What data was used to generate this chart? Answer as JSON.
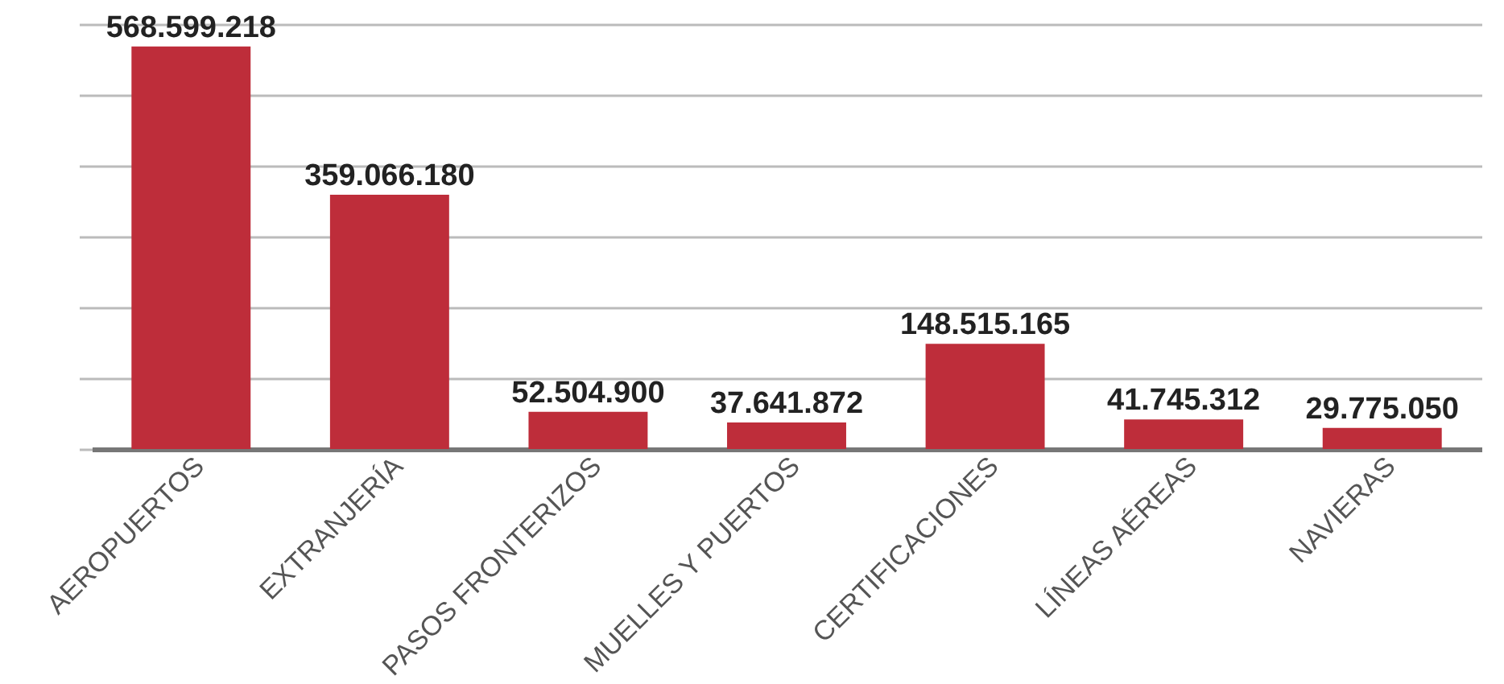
{
  "chart_data": {
    "type": "bar",
    "categories": [
      "AEROPUERTOS",
      "EXTRANJERÍA",
      "PASOS FRONTERIZOS",
      "MUELLES Y PUERTOS",
      "CERTIFICACIONES",
      "LÍNEAS AÉREAS",
      "NAVIERAS"
    ],
    "values": [
      568599218,
      359066180,
      52504900,
      37641872,
      148515165,
      41745312,
      29775050
    ],
    "value_labels": [
      "568.599.218",
      "359.066.180",
      "52.504.900",
      "37.641.872",
      "148.515.165",
      "41.745.312",
      "29.775.050"
    ],
    "color": "#be2d3a",
    "ylim": [
      0,
      600000000
    ],
    "yticks": [
      {
        "value": 0,
        "label": null
      },
      {
        "value": 100000000,
        "label": null
      },
      {
        "value": 200000000,
        "label": null
      },
      {
        "value": 300000000,
        "label": null
      },
      {
        "value": 400000000,
        "label": null
      },
      {
        "value": 500000000,
        "label": null
      },
      {
        "value": 600000000,
        "label": null
      }
    ],
    "grid": "y",
    "tick_labels": "x"
  }
}
